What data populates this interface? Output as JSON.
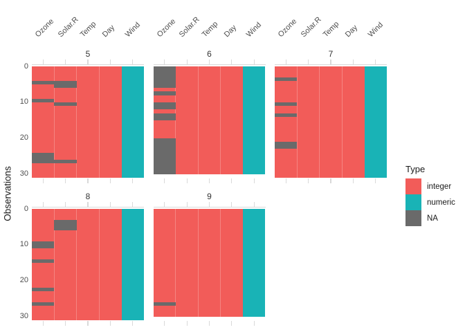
{
  "chart_data": {
    "type": "heatmap",
    "title": "",
    "xlabel": "",
    "ylabel": "Observations",
    "x_categories": [
      "Ozone",
      "Solar.R",
      "Temp",
      "Day",
      "Wind"
    ],
    "column_types": {
      "Ozone": "integer",
      "Solar.R": "integer",
      "Temp": "integer",
      "Day": "integer",
      "Wind": "numeric"
    },
    "y_axis": {
      "ticks": [
        0,
        10,
        20,
        30
      ],
      "max": 31,
      "direction": "top-down"
    },
    "facet_labels": [
      "5",
      "6",
      "7",
      "8",
      "9"
    ],
    "facets": [
      {
        "label": "5",
        "n_observations": 31,
        "na_runs": {
          "Ozone": [
            [
              5,
              5
            ],
            [
              10,
              10
            ],
            [
              25,
              27
            ]
          ],
          "Solar.R": [
            [
              5,
              6
            ],
            [
              11,
              11
            ],
            [
              27,
              27
            ]
          ]
        }
      },
      {
        "label": "6",
        "n_observations": 30,
        "na_runs": {
          "Ozone": [
            [
              1,
              6
            ],
            [
              8,
              8
            ],
            [
              11,
              12
            ],
            [
              14,
              15
            ],
            [
              21,
              30
            ]
          ]
        }
      },
      {
        "label": "7",
        "n_observations": 31,
        "na_runs": {
          "Ozone": [
            [
              4,
              4
            ],
            [
              11,
              11
            ],
            [
              14,
              14
            ],
            [
              22,
              23
            ]
          ]
        }
      },
      {
        "label": "8",
        "n_observations": 31,
        "na_runs": {
          "Ozone": [
            [
              10,
              11
            ],
            [
              15,
              15
            ],
            [
              23,
              23
            ],
            [
              27,
              27
            ]
          ],
          "Solar.R": [
            [
              4,
              6
            ]
          ]
        }
      },
      {
        "label": "9",
        "n_observations": 30,
        "na_runs": {
          "Ozone": [
            [
              27,
              27
            ]
          ]
        }
      }
    ],
    "legend": {
      "title": "Type",
      "position": "right",
      "items": [
        {
          "label": "integer",
          "color": "#F25C59"
        },
        {
          "label": "numeric",
          "color": "#19B3B6"
        },
        {
          "label": "NA",
          "color": "#6A6A6A"
        }
      ]
    },
    "grid": false
  }
}
